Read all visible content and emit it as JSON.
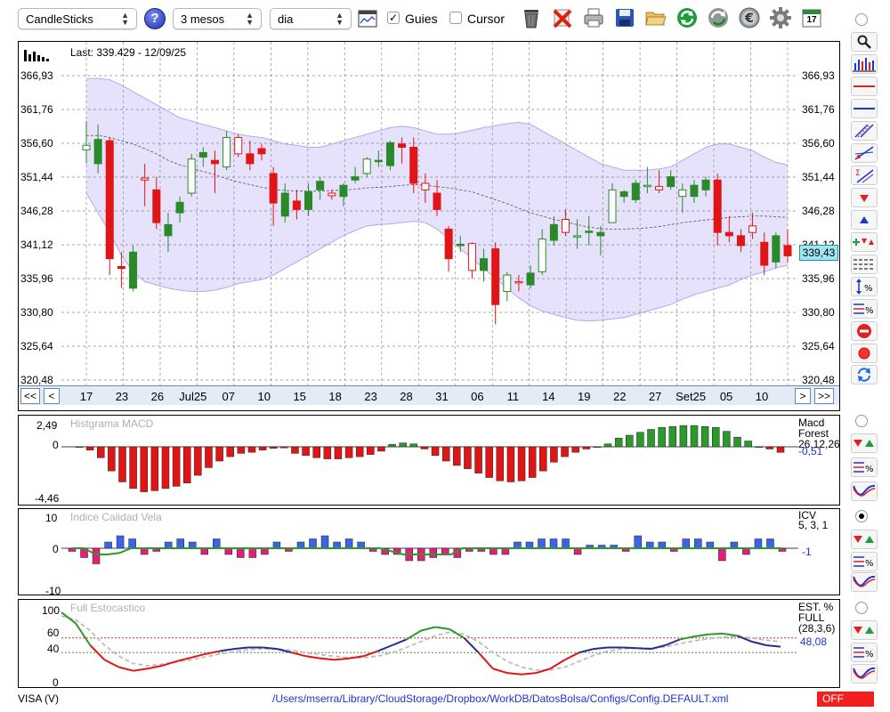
{
  "toolbar": {
    "chart_type": "CandleSticks",
    "help_label": "?",
    "period": "3 mesos",
    "interval": "dia",
    "guides_label": "Guies",
    "guides_checked": "✓",
    "cursor_label": "Cursor",
    "calendar_day": "17"
  },
  "main": {
    "last_label": "Last: 339.429 - 12/09/25",
    "y_ticks": [
      "366,93",
      "361,76",
      "356,60",
      "351,44",
      "346,28",
      "341,12",
      "335,96",
      "330,80",
      "325,64",
      "320,48"
    ],
    "last_price": "339,43",
    "nav": {
      "first": "<<",
      "prev": "<",
      "next": ">",
      "last": ">>",
      "dates": [
        "17",
        "23",
        "26",
        "Jul25",
        "07",
        "10",
        "15",
        "18",
        "23",
        "28",
        "31",
        "06",
        "11",
        "14",
        "19",
        "22",
        "27",
        "Set25",
        "05",
        "10"
      ]
    }
  },
  "macd": {
    "title": "Histgrama MACD",
    "y_ticks": [
      "2,49",
      "0",
      "-4,46"
    ],
    "name": "Macd Forest",
    "params": "26,12,26",
    "value": "-0,51"
  },
  "icv": {
    "title": "Indice Calidad Vela",
    "y_ticks": [
      "10",
      "0",
      "-10"
    ],
    "name": "ICV",
    "params": "5, 3, 1",
    "value": "-1"
  },
  "stoch": {
    "title": "Full Estocastico",
    "y_ticks": [
      "100",
      "60",
      "40",
      "0"
    ],
    "name": "EST. % FULL",
    "params": "(28,3,6)",
    "value": "48,08"
  },
  "status": {
    "symbol": "VISA (V)",
    "path": "/Users/mserra/Library/CloudStorage/Dropbox/WorkDB/DatosBolsa/Configs/Config.DEFAULT.xml",
    "off_label": "OFF"
  },
  "chart_data": {
    "type": "candlestick",
    "ylim": [
      320.48,
      366.93
    ],
    "candles": [
      {
        "o": 355.6,
        "h": 360.0,
        "l": 353.5,
        "c": 356.3
      },
      {
        "o": 353.5,
        "h": 359.5,
        "l": 352.0,
        "c": 357.2
      },
      {
        "o": 357.0,
        "h": 357.5,
        "l": 336.5,
        "c": 339.0
      },
      {
        "o": 337.8,
        "h": 340.0,
        "l": 334.5,
        "c": 337.5
      },
      {
        "o": 334.5,
        "h": 341.0,
        "l": 334.0,
        "c": 340.0
      },
      {
        "o": 351.3,
        "h": 353.5,
        "l": 347.0,
        "c": 351.0
      },
      {
        "o": 349.5,
        "h": 351.5,
        "l": 343.5,
        "c": 344.5
      },
      {
        "o": 342.5,
        "h": 346.0,
        "l": 340.0,
        "c": 344.2
      },
      {
        "o": 346.0,
        "h": 348.5,
        "l": 344.5,
        "c": 347.6
      },
      {
        "o": 349.0,
        "h": 355.0,
        "l": 348.5,
        "c": 354.2
      },
      {
        "o": 354.5,
        "h": 356.0,
        "l": 353.0,
        "c": 355.2
      },
      {
        "o": 354.0,
        "h": 355.5,
        "l": 349.0,
        "c": 353.5
      },
      {
        "o": 353.0,
        "h": 358.5,
        "l": 352.5,
        "c": 357.5
      },
      {
        "o": 357.5,
        "h": 358.0,
        "l": 354.5,
        "c": 355.0
      },
      {
        "o": 355.0,
        "h": 357.0,
        "l": 352.5,
        "c": 353.5
      },
      {
        "o": 355.8,
        "h": 356.5,
        "l": 354.0,
        "c": 355.0
      },
      {
        "o": 352.0,
        "h": 353.0,
        "l": 344.0,
        "c": 347.5
      },
      {
        "o": 345.5,
        "h": 350.5,
        "l": 344.5,
        "c": 349.0
      },
      {
        "o": 347.8,
        "h": 349.5,
        "l": 345.0,
        "c": 346.5
      },
      {
        "o": 346.5,
        "h": 350.5,
        "l": 345.5,
        "c": 349.2
      },
      {
        "o": 349.5,
        "h": 351.5,
        "l": 348.0,
        "c": 350.8
      },
      {
        "o": 349.0,
        "h": 349.5,
        "l": 348.0,
        "c": 348.6
      },
      {
        "o": 348.5,
        "h": 350.5,
        "l": 347.0,
        "c": 350.2
      },
      {
        "o": 351.0,
        "h": 353.0,
        "l": 350.5,
        "c": 351.5
      },
      {
        "o": 352.0,
        "h": 354.5,
        "l": 351.5,
        "c": 354.2
      },
      {
        "o": 354.0,
        "h": 355.5,
        "l": 353.0,
        "c": 354.0
      },
      {
        "o": 353.2,
        "h": 357.0,
        "l": 352.5,
        "c": 356.7
      },
      {
        "o": 356.5,
        "h": 357.5,
        "l": 353.5,
        "c": 356.0
      },
      {
        "o": 356.0,
        "h": 357.5,
        "l": 349.0,
        "c": 350.5
      },
      {
        "o": 350.5,
        "h": 352.0,
        "l": 347.5,
        "c": 349.5
      },
      {
        "o": 349.0,
        "h": 351.0,
        "l": 345.5,
        "c": 346.5
      },
      {
        "o": 343.5,
        "h": 344.0,
        "l": 337.0,
        "c": 339.0
      },
      {
        "o": 341.2,
        "h": 342.5,
        "l": 340.0,
        "c": 341.2
      },
      {
        "o": 341.3,
        "h": 341.5,
        "l": 336.0,
        "c": 337.2
      },
      {
        "o": 337.2,
        "h": 340.5,
        "l": 335.5,
        "c": 339.0
      },
      {
        "o": 340.5,
        "h": 341.5,
        "l": 329.0,
        "c": 332.0
      },
      {
        "o": 334.0,
        "h": 337.0,
        "l": 332.5,
        "c": 336.5
      },
      {
        "o": 335.5,
        "h": 336.5,
        "l": 334.0,
        "c": 335.4
      },
      {
        "o": 335.0,
        "h": 338.0,
        "l": 334.5,
        "c": 336.8
      },
      {
        "o": 337.0,
        "h": 343.5,
        "l": 336.5,
        "c": 342.0
      },
      {
        "o": 341.8,
        "h": 345.5,
        "l": 341.0,
        "c": 344.2
      },
      {
        "o": 345.0,
        "h": 346.5,
        "l": 342.5,
        "c": 343.0
      },
      {
        "o": 342.5,
        "h": 345.0,
        "l": 340.5,
        "c": 342.5
      },
      {
        "o": 343.2,
        "h": 345.5,
        "l": 341.0,
        "c": 343.2
      },
      {
        "o": 342.5,
        "h": 344.0,
        "l": 339.5,
        "c": 343.0
      },
      {
        "o": 344.5,
        "h": 350.5,
        "l": 344.5,
        "c": 349.5
      },
      {
        "o": 348.5,
        "h": 349.5,
        "l": 347.5,
        "c": 349.2
      },
      {
        "o": 348.0,
        "h": 351.0,
        "l": 347.5,
        "c": 350.5
      },
      {
        "o": 350.2,
        "h": 353.0,
        "l": 349.0,
        "c": 350.2
      },
      {
        "o": 350.0,
        "h": 352.5,
        "l": 349.0,
        "c": 349.5
      },
      {
        "o": 350.0,
        "h": 352.5,
        "l": 349.5,
        "c": 351.5
      },
      {
        "o": 348.5,
        "h": 350.5,
        "l": 346.0,
        "c": 349.5
      },
      {
        "o": 348.5,
        "h": 351.0,
        "l": 347.5,
        "c": 350.2
      },
      {
        "o": 349.5,
        "h": 351.5,
        "l": 348.5,
        "c": 351.0
      },
      {
        "o": 351.0,
        "h": 352.0,
        "l": 341.0,
        "c": 343.0
      },
      {
        "o": 343.0,
        "h": 345.5,
        "l": 341.5,
        "c": 342.5
      },
      {
        "o": 342.5,
        "h": 343.5,
        "l": 340.0,
        "c": 341.0
      },
      {
        "o": 344.0,
        "h": 346.0,
        "l": 342.0,
        "c": 343.0
      },
      {
        "o": 341.5,
        "h": 343.0,
        "l": 336.5,
        "c": 338.0
      },
      {
        "o": 338.5,
        "h": 343.0,
        "l": 337.5,
        "c": 342.5
      },
      {
        "o": 341.0,
        "h": 343.5,
        "l": 338.5,
        "c": 339.43
      }
    ],
    "bollinger_upper": [
      366.5,
      366.5,
      366.3,
      365.5,
      364.5,
      363.5,
      362.5,
      361.5,
      360.5,
      360.0,
      359.5,
      359.0,
      358.5,
      358.0,
      357.7,
      357.5,
      357.0,
      356.5,
      356.3,
      356.0,
      356.0,
      356.5,
      357.0,
      357.5,
      358.0,
      358.5,
      359.0,
      359.2,
      359.0,
      358.5,
      358.0,
      358.0,
      358.2,
      358.6,
      359.0,
      359.3,
      359.6,
      359.8,
      359.5,
      358.5,
      357.5,
      356.5,
      355.5,
      354.5,
      353.5,
      353.0,
      352.5,
      352.5,
      352.5,
      352.7,
      353.0,
      354.0,
      355.0,
      356.0,
      356.5,
      356.5,
      356.0,
      355.5,
      354.5,
      353.7,
      353.3
    ],
    "bollinger_lower": [
      349.0,
      346.0,
      343.0,
      339.5,
      337.0,
      335.5,
      335.0,
      334.5,
      334.2,
      334.0,
      334.0,
      334.2,
      334.6,
      335.2,
      335.5,
      335.8,
      336.5,
      337.5,
      338.5,
      339.5,
      340.5,
      341.5,
      342.5,
      343.3,
      344.0,
      344.2,
      344.3,
      344.5,
      344.7,
      344.5,
      343.5,
      342.0,
      340.5,
      339.0,
      337.5,
      336.0,
      334.5,
      333.0,
      331.8,
      331.0,
      330.5,
      330.0,
      329.6,
      329.5,
      329.6,
      329.8,
      330.0,
      330.5,
      331.0,
      331.5,
      332.0,
      332.8,
      333.5,
      334.0,
      334.5,
      335.0,
      335.8,
      336.5,
      337.0,
      337.6,
      338.0
    ],
    "sma": [
      357.8,
      357.8,
      357.5,
      357.0,
      356.5,
      355.8,
      355.0,
      354.0,
      353.3,
      352.8,
      352.3,
      351.8,
      351.2,
      350.7,
      350.3,
      349.9,
      349.6,
      349.4,
      349.3,
      349.3,
      349.3,
      349.4,
      349.5,
      349.6,
      349.8,
      349.9,
      350.0,
      350.2,
      350.3,
      350.2,
      350.0,
      349.8,
      349.5,
      349.2,
      348.6,
      348.0,
      347.4,
      346.7,
      346.0,
      345.5,
      345.0,
      344.6,
      344.2,
      343.8,
      343.6,
      343.5,
      343.5,
      343.6,
      343.7,
      343.9,
      344.2,
      344.5,
      344.7,
      344.9,
      345.1,
      345.3,
      345.4,
      345.5,
      345.5,
      345.4,
      345.3
    ],
    "macd_hist": [
      0,
      -0.3,
      -1.0,
      -2.2,
      -3.2,
      -3.8,
      -4.1,
      -4.0,
      -3.8,
      -3.6,
      -3.3,
      -2.6,
      -1.9,
      -1.3,
      -0.9,
      -0.6,
      -0.5,
      -0.3,
      -0.15,
      -0.1,
      -0.6,
      -0.8,
      -1.0,
      -1.1,
      -1.1,
      -1.0,
      -0.9,
      -0.7,
      -0.4,
      0.25,
      0.4,
      0.3,
      -0.2,
      -0.8,
      -1.3,
      -1.7,
      -2.0,
      -2.4,
      -2.8,
      -3.1,
      -3.2,
      -3.1,
      -2.8,
      -2.2,
      -1.4,
      -0.9,
      -0.5,
      -0.2,
      0,
      0.3,
      0.9,
      1.2,
      1.5,
      1.8,
      2.0,
      2.1,
      2.2,
      2.2,
      2.1,
      2.0,
      1.6,
      1.0,
      0.6,
      0,
      -0.2,
      -0.51
    ],
    "icv_bars": [
      -1,
      -3,
      -5,
      2,
      4,
      3,
      -2,
      -1,
      2,
      3,
      2,
      -2,
      3,
      -2,
      -3,
      -3,
      -2,
      2,
      -1,
      2,
      3,
      4,
      2,
      3,
      2,
      -1,
      -2,
      -2,
      -4,
      -4,
      -3,
      -2,
      -3,
      -1,
      -1,
      -2,
      -2,
      2,
      2,
      3,
      3,
      3,
      -2,
      1,
      1,
      1,
      -1,
      4,
      2,
      2,
      -1,
      3,
      3,
      2,
      -4,
      2,
      -2,
      3,
      3,
      -1
    ],
    "icv_line": [
      0,
      0,
      -2,
      -2,
      -1.5,
      0,
      0,
      0,
      0,
      0,
      0,
      0,
      0,
      0,
      0,
      0,
      0,
      0,
      0,
      0,
      0,
      0,
      0,
      0,
      0,
      0,
      0,
      -1,
      -2,
      -2,
      -2,
      -2,
      -2,
      0,
      0,
      0,
      0,
      0,
      0,
      0,
      0,
      0,
      0,
      0,
      0,
      0,
      0,
      0,
      0,
      0,
      0,
      0,
      0,
      0,
      0,
      0,
      0,
      0,
      0,
      0,
      0
    ],
    "stoch_k": [
      95,
      80,
      50,
      30,
      20,
      15,
      18,
      22,
      28,
      33,
      38,
      42,
      45,
      47,
      47,
      45,
      40,
      35,
      32,
      30,
      32,
      35,
      42,
      50,
      58,
      70,
      75,
      72,
      60,
      40,
      18,
      12,
      10,
      12,
      18,
      30,
      40,
      45,
      47,
      47,
      46,
      45,
      50,
      58,
      62,
      65,
      66,
      63,
      55,
      50,
      48
    ],
    "stoch_d": [
      90,
      85,
      70,
      50,
      35,
      25,
      22,
      24,
      27,
      30,
      34,
      38,
      41,
      44,
      45,
      45,
      43,
      40,
      37,
      35,
      33,
      33,
      35,
      40,
      47,
      55,
      63,
      68,
      65,
      55,
      40,
      28,
      20,
      16,
      16,
      20,
      28,
      36,
      42,
      45,
      46,
      46,
      48,
      52,
      56,
      59,
      61,
      62,
      60,
      57,
      55
    ],
    "stoch_levels": [
      60,
      40
    ]
  }
}
